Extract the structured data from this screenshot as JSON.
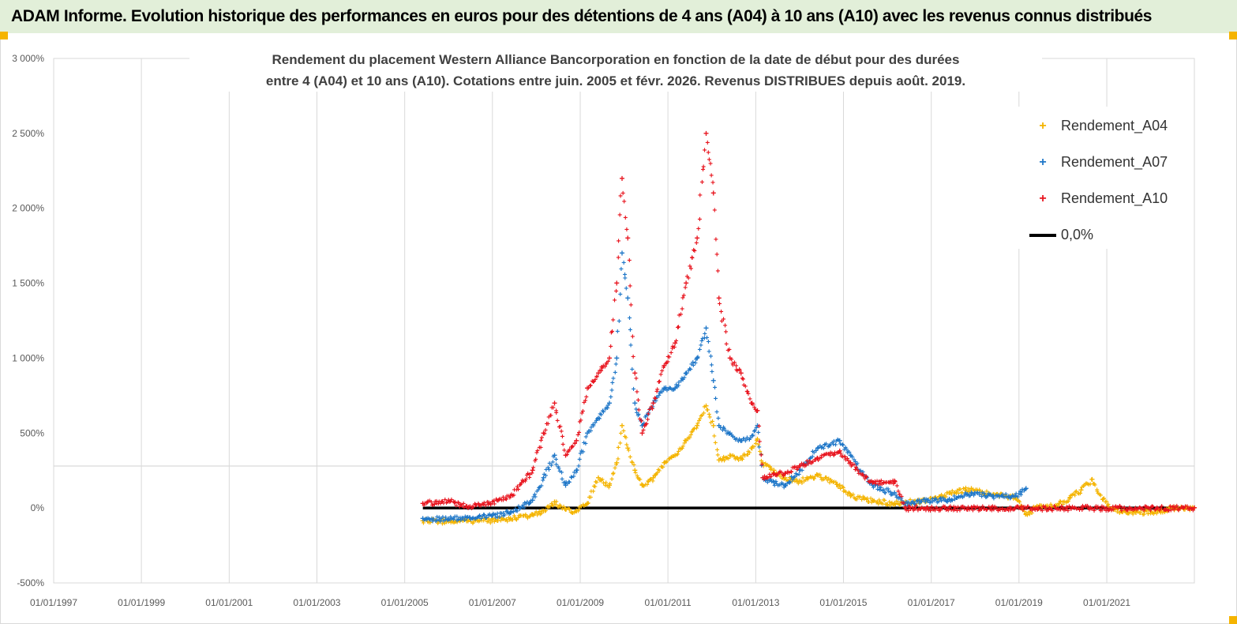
{
  "header": {
    "title": "ADAM Informe. Evolution historique des performances en euros pour des détentions de 4 ans (A04) à 10 ans (A10) avec les revenus connus distribués",
    "accent_color": "#e2efd9",
    "corner_color": "#f5b400"
  },
  "chart_data": {
    "type": "scatter",
    "title_line1": "Rendement du placement Western Alliance Bancorporation en fonction de la date de début pour des durées",
    "title_line2": "entre 4 (A04) et 10 ans (A10).  Cotations entre juin. 2005 et févr. 2026. Revenus DISTRIBUES depuis août. 2019.",
    "x_axis": {
      "type": "date",
      "min": "1997-01-01",
      "max": "2022-12-31",
      "tick_labels": [
        "01/01/1997",
        "01/01/1999",
        "01/01/2001",
        "01/01/2003",
        "01/01/2005",
        "01/01/2007",
        "01/01/2009",
        "01/01/2011",
        "01/01/2013",
        "01/01/2015",
        "01/01/2017",
        "01/01/2019",
        "01/01/2021"
      ]
    },
    "y_axis": {
      "min": -500,
      "max": 3000,
      "unit": "%",
      "tick_labels": [
        "3 000%",
        "2 500%",
        "2 000%",
        "1 500%",
        "1 000%",
        "500%",
        "0%",
        "-500%"
      ],
      "tick_values": [
        3000,
        2500,
        2000,
        1500,
        1000,
        500,
        0,
        -500
      ]
    },
    "legend_position": "top-right",
    "grid": {
      "vertical": true,
      "horizontal": false
    },
    "series": [
      {
        "name": "Rendement_A04",
        "marker": "+",
        "color": "#f4b400",
        "points": [
          [
            "2005-06-01",
            -85
          ],
          [
            "2006-01-01",
            -88
          ],
          [
            "2006-06-01",
            -85
          ],
          [
            "2007-01-01",
            -80
          ],
          [
            "2007-06-01",
            -70
          ],
          [
            "2007-12-01",
            -45
          ],
          [
            "2008-03-01",
            -20
          ],
          [
            "2008-06-01",
            40
          ],
          [
            "2008-09-01",
            -10
          ],
          [
            "2008-12-01",
            -20
          ],
          [
            "2009-03-01",
            30
          ],
          [
            "2009-06-01",
            200
          ],
          [
            "2009-09-01",
            150
          ],
          [
            "2009-11-01",
            300
          ],
          [
            "2009-12-15",
            550
          ],
          [
            "2010-02-01",
            400
          ],
          [
            "2010-04-01",
            250
          ],
          [
            "2010-06-01",
            150
          ],
          [
            "2010-09-01",
            200
          ],
          [
            "2010-12-01",
            300
          ],
          [
            "2011-03-01",
            350
          ],
          [
            "2011-06-01",
            450
          ],
          [
            "2011-09-01",
            550
          ],
          [
            "2011-11-15",
            680
          ],
          [
            "2012-01-15",
            550
          ],
          [
            "2012-03-01",
            320
          ],
          [
            "2012-06-01",
            350
          ],
          [
            "2012-09-01",
            330
          ],
          [
            "2012-12-01",
            400
          ],
          [
            "2013-01-15",
            460
          ],
          [
            "2013-03-01",
            300
          ],
          [
            "2013-06-01",
            250
          ],
          [
            "2013-09-01",
            200
          ],
          [
            "2014-01-01",
            180
          ],
          [
            "2014-06-01",
            220
          ],
          [
            "2014-12-01",
            150
          ],
          [
            "2015-03-01",
            80
          ],
          [
            "2015-09-01",
            50
          ],
          [
            "2016-03-01",
            30
          ],
          [
            "2016-06-01",
            40
          ],
          [
            "2016-12-01",
            50
          ],
          [
            "2017-06-01",
            100
          ],
          [
            "2017-12-01",
            130
          ],
          [
            "2018-06-01",
            90
          ],
          [
            "2018-12-01",
            70
          ],
          [
            "2019-03-01",
            -40
          ],
          [
            "2019-06-01",
            10
          ],
          [
            "2019-12-01",
            30
          ],
          [
            "2020-03-01",
            70
          ],
          [
            "2020-06-01",
            120
          ],
          [
            "2020-09-01",
            190
          ],
          [
            "2020-12-01",
            60
          ],
          [
            "2021-03-01",
            -10
          ],
          [
            "2021-09-01",
            -30
          ],
          [
            "2022-03-01",
            -20
          ],
          [
            "2022-06-01",
            -5
          ],
          [
            "2022-12-31",
            0
          ]
        ]
      },
      {
        "name": "Rendement_A07",
        "marker": "+",
        "color": "#1f77c8",
        "points": [
          [
            "2005-06-01",
            -70
          ],
          [
            "2006-01-01",
            -72
          ],
          [
            "2006-06-01",
            -65
          ],
          [
            "2007-01-01",
            -50
          ],
          [
            "2007-06-01",
            -30
          ],
          [
            "2007-12-01",
            50
          ],
          [
            "2008-03-01",
            200
          ],
          [
            "2008-06-01",
            350
          ],
          [
            "2008-09-01",
            150
          ],
          [
            "2008-12-01",
            250
          ],
          [
            "2009-03-01",
            500
          ],
          [
            "2009-06-01",
            600
          ],
          [
            "2009-09-01",
            700
          ],
          [
            "2009-11-01",
            1000
          ],
          [
            "2009-12-15",
            1700
          ],
          [
            "2010-02-01",
            1400
          ],
          [
            "2010-04-01",
            700
          ],
          [
            "2010-06-01",
            550
          ],
          [
            "2010-09-01",
            700
          ],
          [
            "2010-12-01",
            800
          ],
          [
            "2011-03-01",
            800
          ],
          [
            "2011-06-01",
            900
          ],
          [
            "2011-09-01",
            1000
          ],
          [
            "2011-11-15",
            1200
          ],
          [
            "2012-01-15",
            850
          ],
          [
            "2012-03-01",
            550
          ],
          [
            "2012-06-01",
            500
          ],
          [
            "2012-09-01",
            450
          ],
          [
            "2012-12-01",
            480
          ],
          [
            "2013-01-15",
            550
          ],
          [
            "2013-03-01",
            200
          ],
          [
            "2013-06-01",
            170
          ],
          [
            "2013-09-01",
            150
          ],
          [
            "2014-01-01",
            250
          ],
          [
            "2014-06-01",
            400
          ],
          [
            "2014-12-01",
            450
          ],
          [
            "2015-03-01",
            350
          ],
          [
            "2015-09-01",
            150
          ],
          [
            "2016-03-01",
            100
          ],
          [
            "2016-06-01",
            30
          ],
          [
            "2016-12-01",
            50
          ],
          [
            "2017-06-01",
            60
          ],
          [
            "2017-12-01",
            100
          ],
          [
            "2018-06-01",
            80
          ],
          [
            "2018-12-01",
            80
          ],
          [
            "2019-03-01",
            130
          ]
        ]
      },
      {
        "name": "Rendement_A10",
        "marker": "+",
        "color": "#e8141e",
        "points": [
          [
            "2005-06-01",
            30
          ],
          [
            "2006-01-01",
            50
          ],
          [
            "2006-06-01",
            10
          ],
          [
            "2007-01-01",
            40
          ],
          [
            "2007-06-01",
            80
          ],
          [
            "2007-12-01",
            250
          ],
          [
            "2008-03-01",
            500
          ],
          [
            "2008-06-01",
            700
          ],
          [
            "2008-09-01",
            350
          ],
          [
            "2008-12-01",
            450
          ],
          [
            "2009-03-01",
            800
          ],
          [
            "2009-06-01",
            900
          ],
          [
            "2009-09-01",
            1000
          ],
          [
            "2009-11-01",
            1500
          ],
          [
            "2009-12-15",
            2200
          ],
          [
            "2010-02-01",
            1800
          ],
          [
            "2010-04-01",
            900
          ],
          [
            "2010-06-01",
            500
          ],
          [
            "2010-09-01",
            700
          ],
          [
            "2010-12-01",
            950
          ],
          [
            "2011-03-01",
            1100
          ],
          [
            "2011-06-01",
            1500
          ],
          [
            "2011-09-01",
            1800
          ],
          [
            "2011-11-15",
            2500
          ],
          [
            "2012-01-15",
            2100
          ],
          [
            "2012-03-01",
            1400
          ],
          [
            "2012-06-01",
            1000
          ],
          [
            "2012-09-01",
            900
          ],
          [
            "2012-12-01",
            700
          ],
          [
            "2013-01-15",
            650
          ],
          [
            "2013-03-01",
            200
          ],
          [
            "2013-06-01",
            230
          ],
          [
            "2013-09-01",
            230
          ],
          [
            "2014-01-01",
            280
          ],
          [
            "2014-06-01",
            330
          ],
          [
            "2014-12-01",
            380
          ],
          [
            "2015-03-01",
            300
          ],
          [
            "2015-09-01",
            170
          ],
          [
            "2016-03-01",
            180
          ],
          [
            "2016-06-01",
            0
          ],
          [
            "2016-12-01",
            0
          ],
          [
            "2018-01-01",
            0
          ],
          [
            "2020-01-01",
            0
          ],
          [
            "2022-12-31",
            0
          ]
        ]
      },
      {
        "name": "0,0%",
        "marker": "line",
        "color": "#000000",
        "points": [
          [
            "2005-06-01",
            0
          ],
          [
            "2022-12-31",
            0
          ]
        ]
      }
    ]
  }
}
